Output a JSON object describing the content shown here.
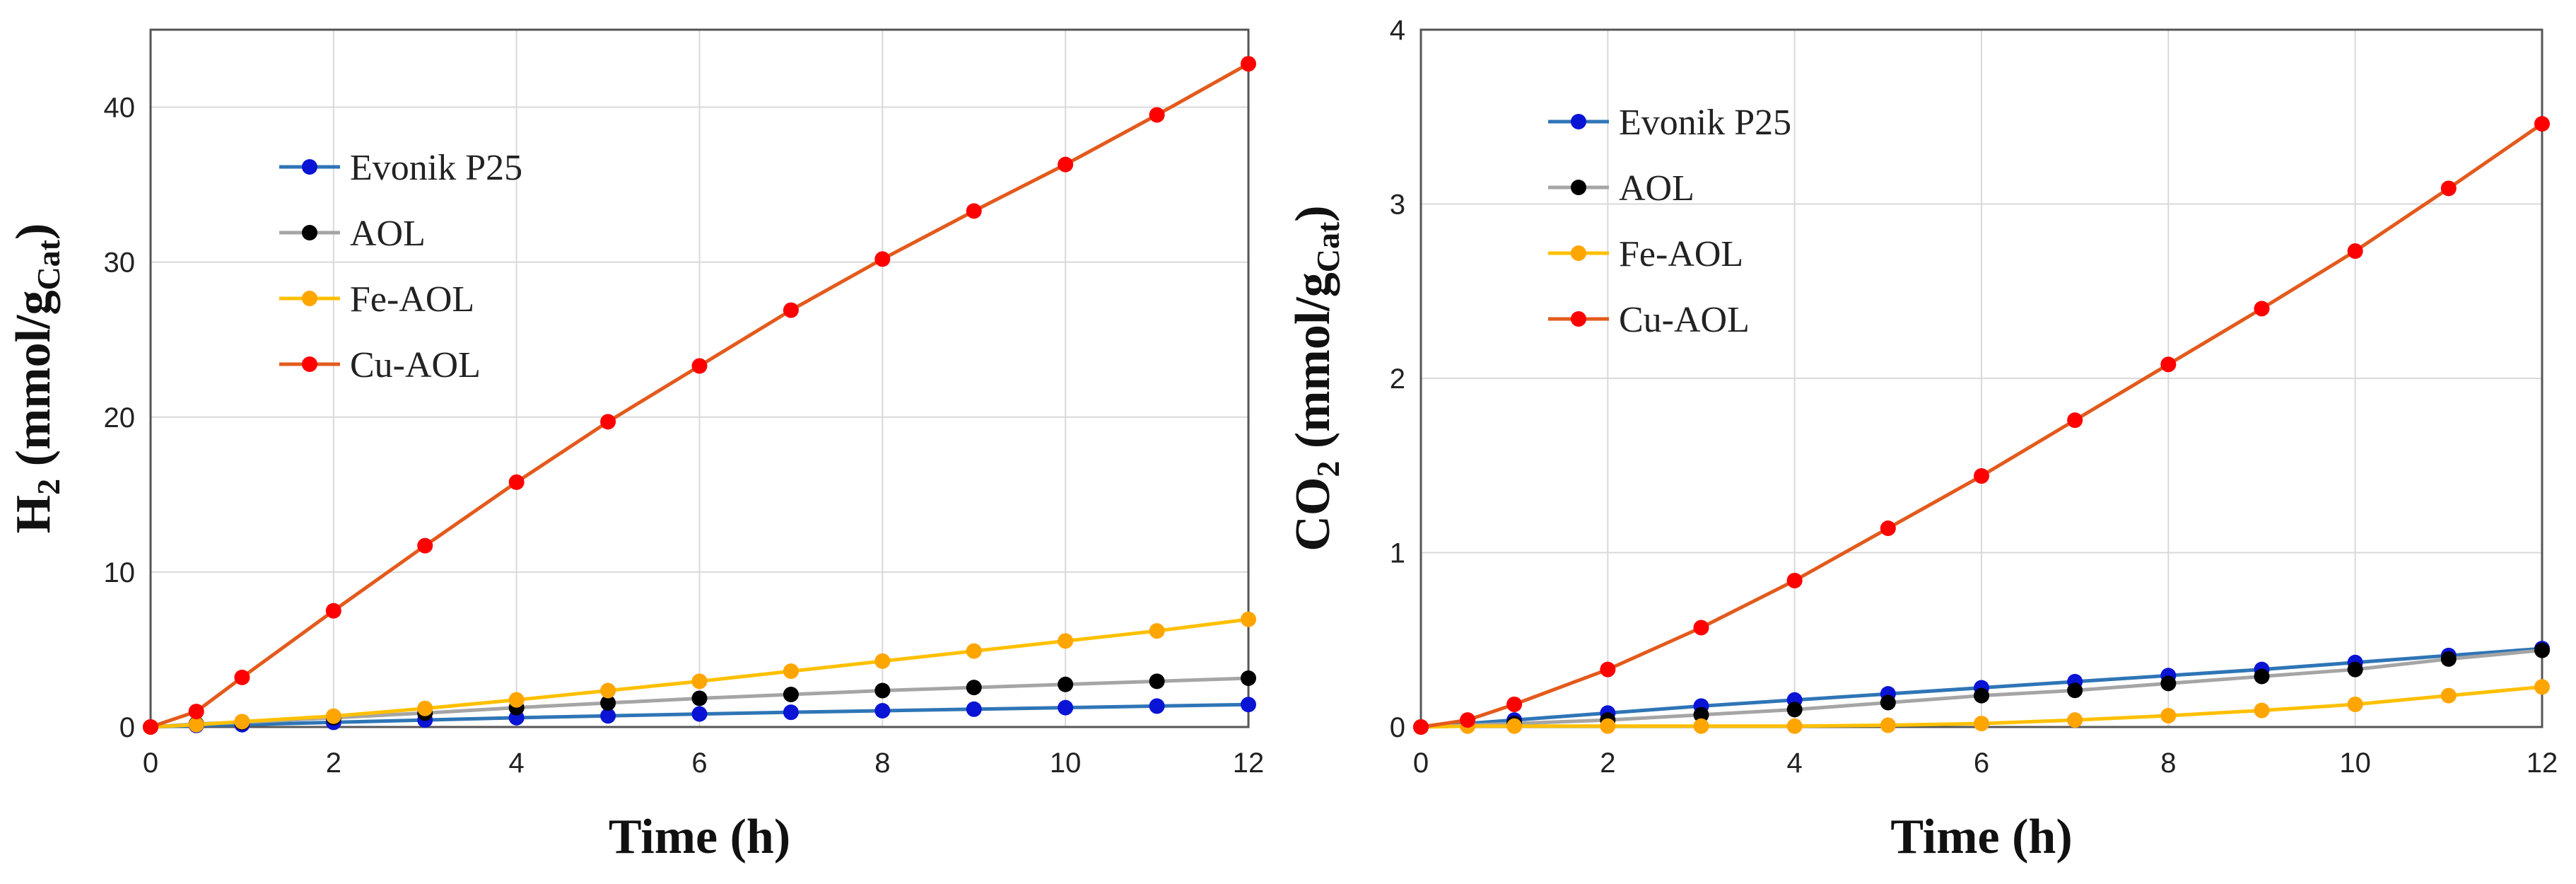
{
  "chart_data": [
    {
      "type": "line",
      "xlabel": "Time (h)",
      "ylabel": {
        "main": "H",
        "sub": "2",
        "rest": " (mmol/g",
        "sub2": "Cat",
        "close": ")"
      },
      "xlim": [
        0,
        12
      ],
      "ylim": [
        0,
        45
      ],
      "xticks": [
        0,
        2,
        4,
        6,
        8,
        10,
        12
      ],
      "yticks": [
        0,
        10,
        20,
        30,
        40
      ],
      "grid": true,
      "legend_position": "upper-left",
      "series": [
        {
          "name": "Evonik P25",
          "line_color": "#2E75B6",
          "marker_color": "#0A14D4",
          "x": [
            0,
            0.5,
            1,
            2,
            3,
            4,
            5,
            6,
            7,
            8,
            9,
            10,
            11,
            12
          ],
          "y": [
            0,
            0.1,
            0.15,
            0.3,
            0.45,
            0.6,
            0.72,
            0.84,
            0.95,
            1.05,
            1.15,
            1.25,
            1.35,
            1.45
          ]
        },
        {
          "name": "AOL",
          "line_color": "#A5A5A5",
          "marker_color": "#000000",
          "x": [
            0,
            0.5,
            1,
            2,
            3,
            4,
            5,
            6,
            7,
            8,
            9,
            10,
            11,
            12
          ],
          "y": [
            0,
            0.2,
            0.3,
            0.6,
            0.9,
            1.25,
            1.55,
            1.85,
            2.1,
            2.35,
            2.55,
            2.75,
            2.95,
            3.15
          ]
        },
        {
          "name": "Fe-AOL",
          "line_color": "#FFC000",
          "marker_color": "#FFA500",
          "x": [
            0,
            0.5,
            1,
            2,
            3,
            4,
            5,
            6,
            7,
            8,
            9,
            10,
            11,
            12
          ],
          "y": [
            0,
            0.15,
            0.35,
            0.7,
            1.2,
            1.75,
            2.35,
            2.95,
            3.6,
            4.25,
            4.9,
            5.55,
            6.2,
            6.95
          ]
        },
        {
          "name": "Cu-AOL",
          "line_color": "#E35A1C",
          "marker_color": "#FF0000",
          "x": [
            0,
            0.5,
            1,
            2,
            3,
            4,
            5,
            6,
            7,
            8,
            9,
            10,
            11,
            12
          ],
          "y": [
            0,
            1.0,
            3.2,
            7.5,
            11.7,
            15.8,
            19.7,
            23.3,
            26.9,
            30.2,
            33.3,
            36.3,
            39.5,
            42.8
          ]
        }
      ]
    },
    {
      "type": "line",
      "xlabel": "Time (h)",
      "ylabel": {
        "main": "CO",
        "sub": "2",
        "rest": " (mmol/g",
        "sub2": "Cat",
        "close": ")"
      },
      "xlim": [
        0,
        12
      ],
      "ylim": [
        0,
        4
      ],
      "xticks": [
        0,
        2,
        4,
        6,
        8,
        10,
        12
      ],
      "yticks": [
        0,
        1,
        2,
        3,
        4
      ],
      "grid": true,
      "legend_position": "upper-left",
      "series": [
        {
          "name": "Evonik P25",
          "line_color": "#2E75B6",
          "marker_color": "#0A14D4",
          "x": [
            0,
            1,
            2,
            3,
            4,
            5,
            6,
            7,
            8,
            9,
            10,
            11,
            12
          ],
          "y": [
            0,
            0.04,
            0.08,
            0.12,
            0.155,
            0.19,
            0.225,
            0.26,
            0.295,
            0.33,
            0.37,
            0.41,
            0.45
          ]
        },
        {
          "name": "AOL",
          "line_color": "#A5A5A5",
          "marker_color": "#000000",
          "x": [
            0,
            1,
            2,
            3,
            4,
            5,
            6,
            7,
            8,
            9,
            10,
            11,
            12
          ],
          "y": [
            0,
            0.02,
            0.04,
            0.07,
            0.1,
            0.14,
            0.18,
            0.21,
            0.25,
            0.29,
            0.33,
            0.39,
            0.44
          ]
        },
        {
          "name": "Fe-AOL",
          "line_color": "#FFC000",
          "marker_color": "#FFA500",
          "x": [
            0,
            0.5,
            1,
            2,
            3,
            4,
            5,
            6,
            7,
            8,
            9,
            10,
            11,
            12
          ],
          "y": [
            0,
            0.005,
            0.005,
            0.005,
            0.005,
            0.005,
            0.01,
            0.02,
            0.04,
            0.065,
            0.095,
            0.13,
            0.18,
            0.23
          ]
        },
        {
          "name": "Cu-AOL",
          "line_color": "#E35A1C",
          "marker_color": "#FF0000",
          "x": [
            0,
            0.5,
            1,
            2,
            3,
            4,
            5,
            6,
            7,
            8,
            9,
            10,
            11,
            12
          ],
          "y": [
            0,
            0.04,
            0.13,
            0.33,
            0.57,
            0.84,
            1.14,
            1.44,
            1.76,
            2.08,
            2.4,
            2.73,
            3.09,
            3.46
          ]
        }
      ]
    }
  ]
}
